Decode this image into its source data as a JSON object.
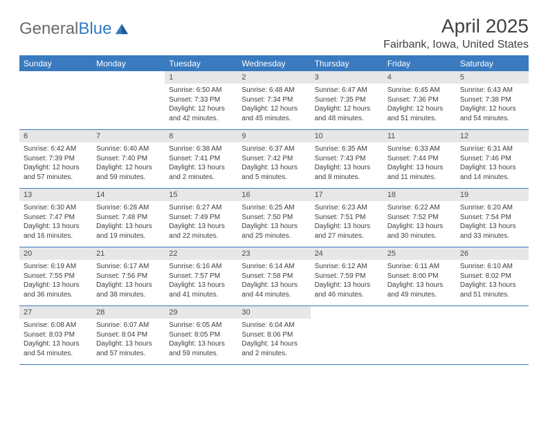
{
  "logo": {
    "part1": "General",
    "part2": "Blue"
  },
  "title": "April 2025",
  "location": "Fairbank, Iowa, United States",
  "colors": {
    "header_bg": "#3a7abf",
    "header_text": "#ffffff",
    "daynum_bg": "#e7e7e7",
    "text": "#3d3d3d",
    "title_color": "#414141",
    "logo_gray": "#6b6b6b",
    "logo_blue": "#2f7bc4",
    "border": "#3a7abf"
  },
  "dayNames": [
    "Sunday",
    "Monday",
    "Tuesday",
    "Wednesday",
    "Thursday",
    "Friday",
    "Saturday"
  ],
  "weeks": [
    [
      null,
      null,
      {
        "n": "1",
        "sr": "6:50 AM",
        "ss": "7:33 PM",
        "dl": "12 hours and 42 minutes."
      },
      {
        "n": "2",
        "sr": "6:48 AM",
        "ss": "7:34 PM",
        "dl": "12 hours and 45 minutes."
      },
      {
        "n": "3",
        "sr": "6:47 AM",
        "ss": "7:35 PM",
        "dl": "12 hours and 48 minutes."
      },
      {
        "n": "4",
        "sr": "6:45 AM",
        "ss": "7:36 PM",
        "dl": "12 hours and 51 minutes."
      },
      {
        "n": "5",
        "sr": "6:43 AM",
        "ss": "7:38 PM",
        "dl": "12 hours and 54 minutes."
      }
    ],
    [
      {
        "n": "6",
        "sr": "6:42 AM",
        "ss": "7:39 PM",
        "dl": "12 hours and 57 minutes."
      },
      {
        "n": "7",
        "sr": "6:40 AM",
        "ss": "7:40 PM",
        "dl": "12 hours and 59 minutes."
      },
      {
        "n": "8",
        "sr": "6:38 AM",
        "ss": "7:41 PM",
        "dl": "13 hours and 2 minutes."
      },
      {
        "n": "9",
        "sr": "6:37 AM",
        "ss": "7:42 PM",
        "dl": "13 hours and 5 minutes."
      },
      {
        "n": "10",
        "sr": "6:35 AM",
        "ss": "7:43 PM",
        "dl": "13 hours and 8 minutes."
      },
      {
        "n": "11",
        "sr": "6:33 AM",
        "ss": "7:44 PM",
        "dl": "13 hours and 11 minutes."
      },
      {
        "n": "12",
        "sr": "6:31 AM",
        "ss": "7:46 PM",
        "dl": "13 hours and 14 minutes."
      }
    ],
    [
      {
        "n": "13",
        "sr": "6:30 AM",
        "ss": "7:47 PM",
        "dl": "13 hours and 16 minutes."
      },
      {
        "n": "14",
        "sr": "6:28 AM",
        "ss": "7:48 PM",
        "dl": "13 hours and 19 minutes."
      },
      {
        "n": "15",
        "sr": "6:27 AM",
        "ss": "7:49 PM",
        "dl": "13 hours and 22 minutes."
      },
      {
        "n": "16",
        "sr": "6:25 AM",
        "ss": "7:50 PM",
        "dl": "13 hours and 25 minutes."
      },
      {
        "n": "17",
        "sr": "6:23 AM",
        "ss": "7:51 PM",
        "dl": "13 hours and 27 minutes."
      },
      {
        "n": "18",
        "sr": "6:22 AM",
        "ss": "7:52 PM",
        "dl": "13 hours and 30 minutes."
      },
      {
        "n": "19",
        "sr": "6:20 AM",
        "ss": "7:54 PM",
        "dl": "13 hours and 33 minutes."
      }
    ],
    [
      {
        "n": "20",
        "sr": "6:19 AM",
        "ss": "7:55 PM",
        "dl": "13 hours and 36 minutes."
      },
      {
        "n": "21",
        "sr": "6:17 AM",
        "ss": "7:56 PM",
        "dl": "13 hours and 38 minutes."
      },
      {
        "n": "22",
        "sr": "6:16 AM",
        "ss": "7:57 PM",
        "dl": "13 hours and 41 minutes."
      },
      {
        "n": "23",
        "sr": "6:14 AM",
        "ss": "7:58 PM",
        "dl": "13 hours and 44 minutes."
      },
      {
        "n": "24",
        "sr": "6:12 AM",
        "ss": "7:59 PM",
        "dl": "13 hours and 46 minutes."
      },
      {
        "n": "25",
        "sr": "6:11 AM",
        "ss": "8:00 PM",
        "dl": "13 hours and 49 minutes."
      },
      {
        "n": "26",
        "sr": "6:10 AM",
        "ss": "8:02 PM",
        "dl": "13 hours and 51 minutes."
      }
    ],
    [
      {
        "n": "27",
        "sr": "6:08 AM",
        "ss": "8:03 PM",
        "dl": "13 hours and 54 minutes."
      },
      {
        "n": "28",
        "sr": "6:07 AM",
        "ss": "8:04 PM",
        "dl": "13 hours and 57 minutes."
      },
      {
        "n": "29",
        "sr": "6:05 AM",
        "ss": "8:05 PM",
        "dl": "13 hours and 59 minutes."
      },
      {
        "n": "30",
        "sr": "6:04 AM",
        "ss": "8:06 PM",
        "dl": "14 hours and 2 minutes."
      },
      null,
      null,
      null
    ]
  ],
  "labels": {
    "sunrise": "Sunrise:",
    "sunset": "Sunset:",
    "daylight": "Daylight:"
  }
}
